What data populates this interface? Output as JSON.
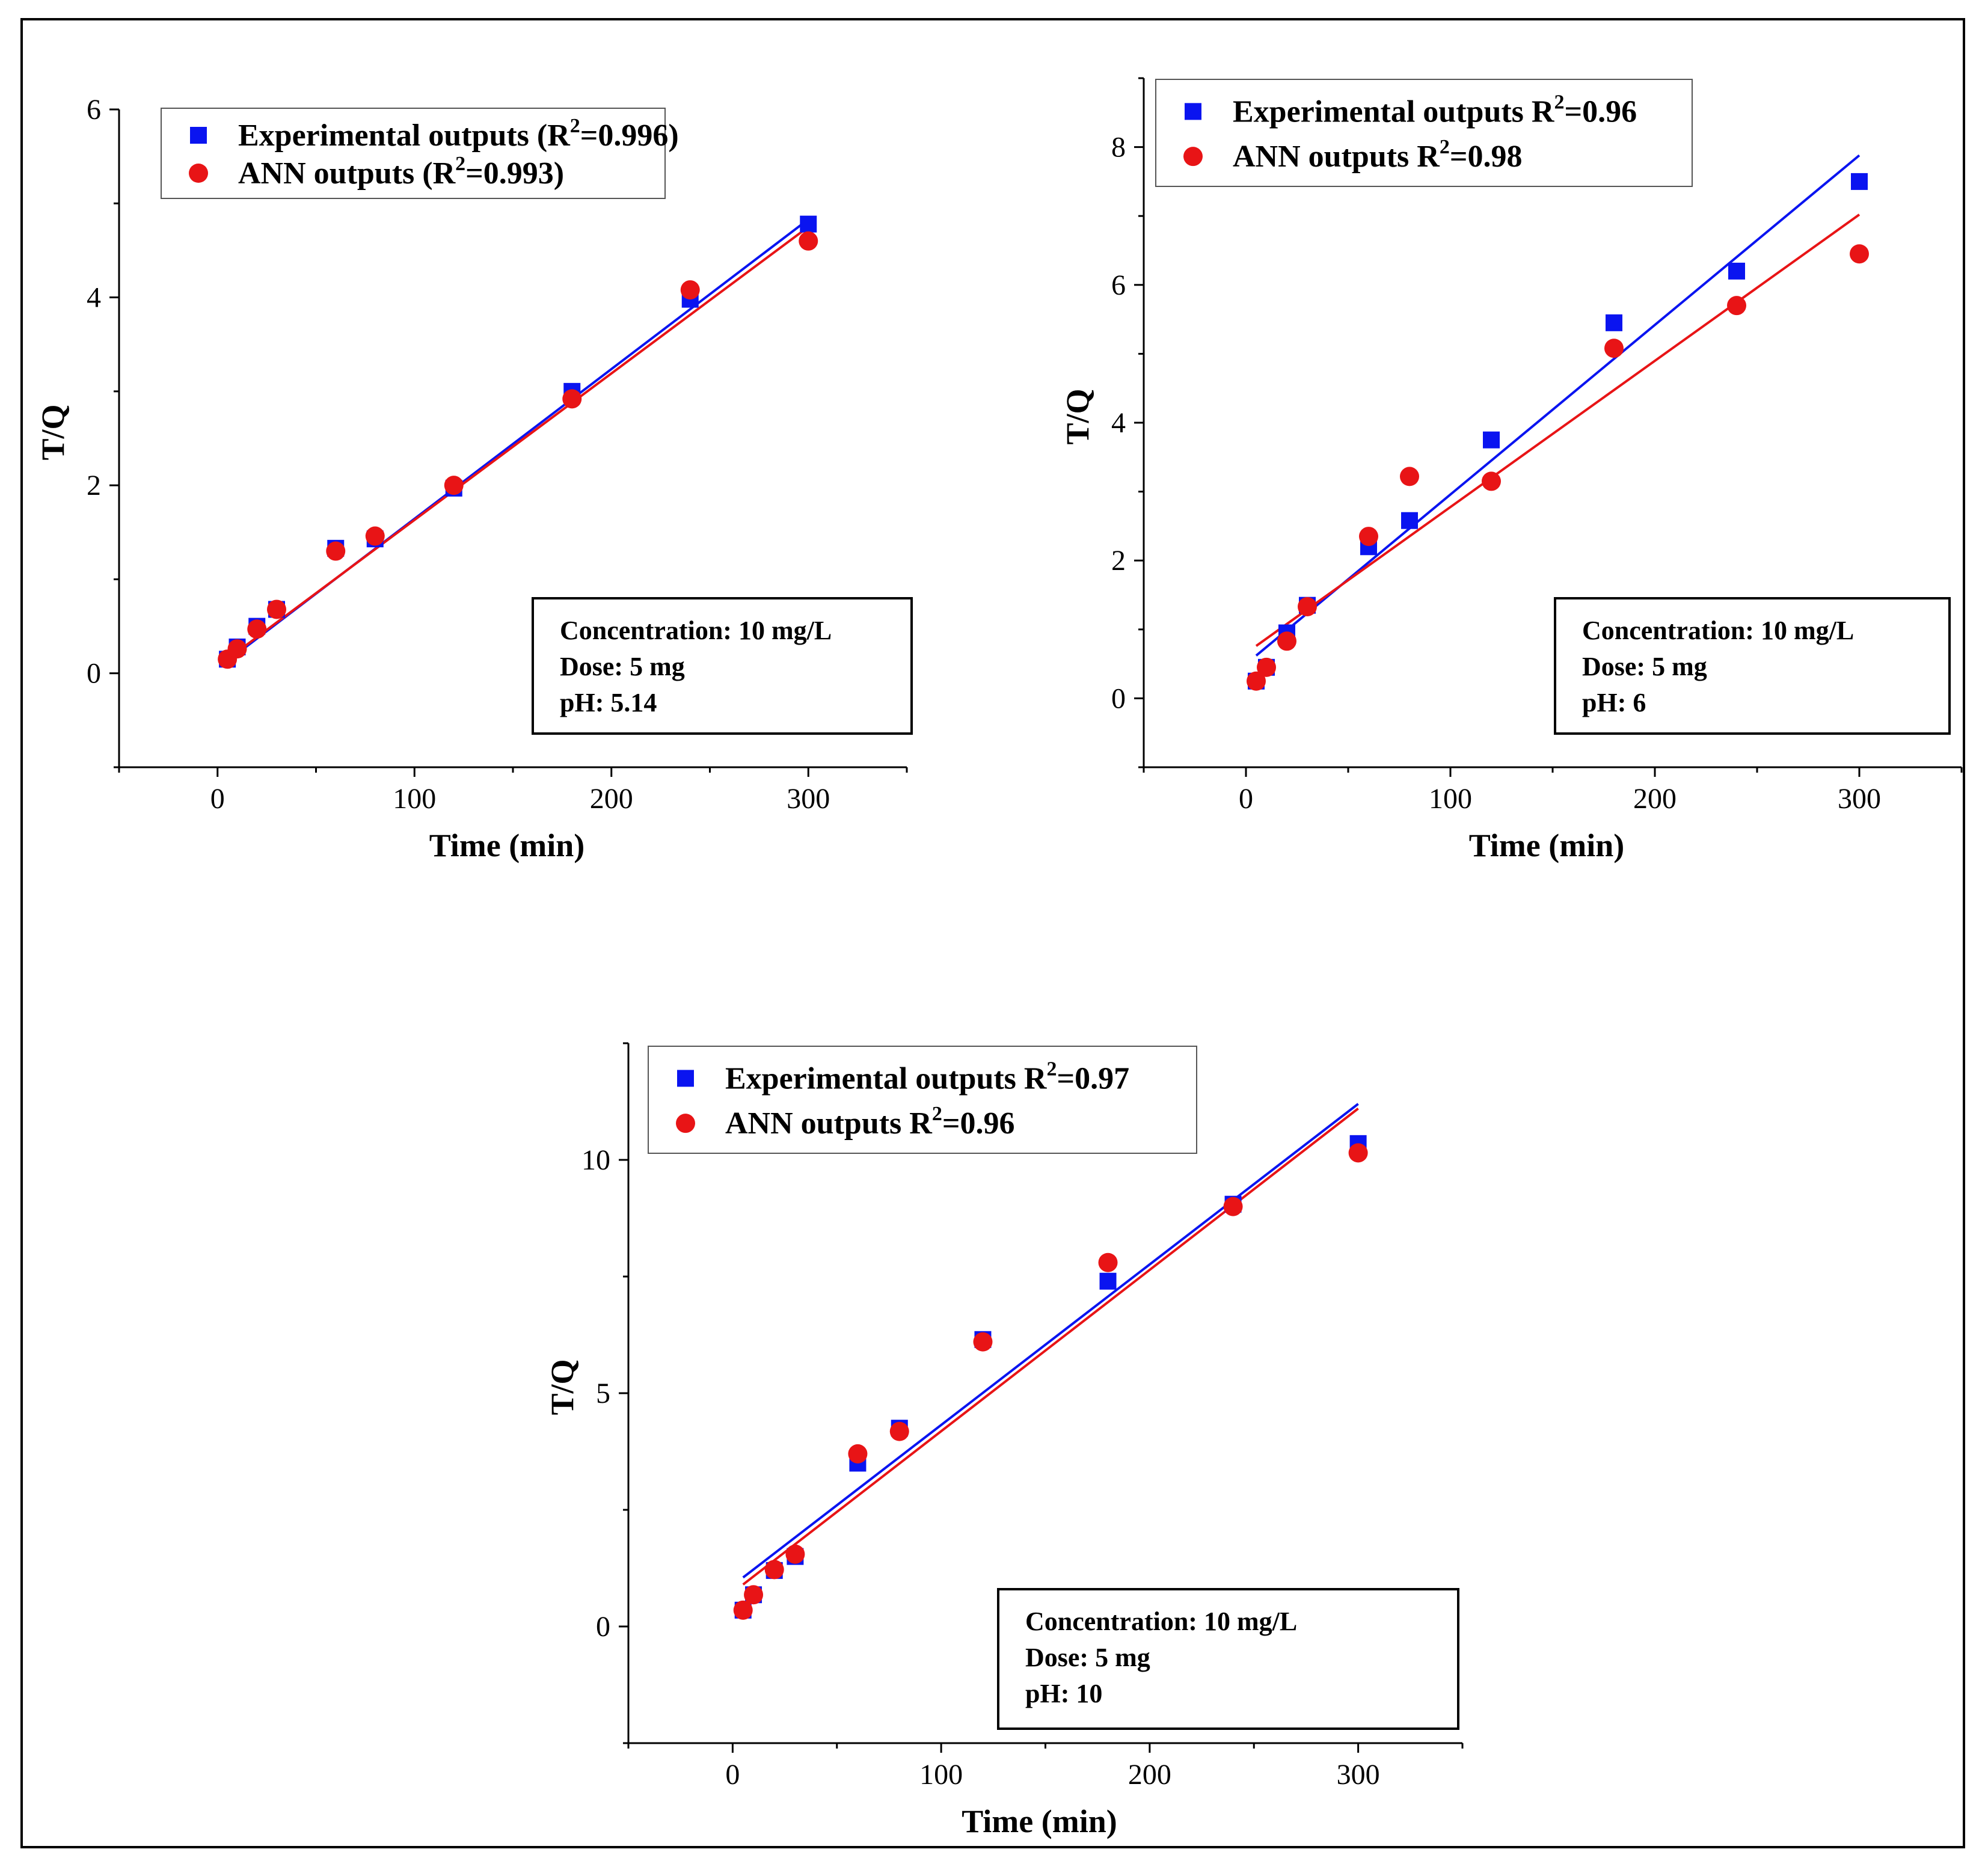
{
  "colors": {
    "experimental": "#0a14f0",
    "ann": "#e81416",
    "axis": "#000000"
  },
  "chart_data": [
    {
      "type": "scatter",
      "panel": "top-left",
      "xlabel": "Time (min)",
      "ylabel": "T/Q",
      "xlim": [
        -50,
        350
      ],
      "ylim": [
        -1,
        6
      ],
      "xticks": [
        "0",
        "100",
        "200",
        "300"
      ],
      "yticks": [
        "0",
        "2",
        "4",
        "6"
      ],
      "xtick_values": [
        0,
        100,
        200,
        300
      ],
      "ytick_values": [
        0,
        2,
        4,
        6
      ],
      "legend": {
        "position": "top-left",
        "items": [
          {
            "pre": "Experimental outputs (R",
            "sup": "2",
            "post": "=0.996)"
          },
          {
            "pre": "ANN outputs (R",
            "sup": "2",
            "post": "=0.993)"
          }
        ]
      },
      "info": [
        "Concentration: 10 mg/L",
        "Dose: 5 mg",
        "pH: 5.14"
      ],
      "series": [
        {
          "name": "Experimental outputs",
          "marker": "square",
          "x": [
            5,
            10,
            20,
            30,
            60,
            80,
            120,
            180,
            240,
            300
          ],
          "y": [
            0.15,
            0.28,
            0.5,
            0.68,
            1.33,
            1.43,
            1.97,
            3.0,
            3.98,
            4.78
          ],
          "fit": [
            [
              5,
              0.13
            ],
            [
              300,
              4.83
            ]
          ]
        },
        {
          "name": "ANN outputs",
          "marker": "circle",
          "x": [
            5,
            10,
            20,
            30,
            60,
            80,
            120,
            180,
            240,
            300
          ],
          "y": [
            0.15,
            0.26,
            0.47,
            0.68,
            1.3,
            1.46,
            2.0,
            2.92,
            4.08,
            4.6
          ],
          "fit": [
            [
              5,
              0.15
            ],
            [
              300,
              4.75
            ]
          ]
        }
      ]
    },
    {
      "type": "scatter",
      "panel": "top-right",
      "xlabel": "Time (min)",
      "ylabel": "T/Q",
      "xlim": [
        -50,
        350
      ],
      "ylim": [
        -1,
        9
      ],
      "xticks": [
        "0",
        "100",
        "200",
        "300"
      ],
      "yticks": [
        "0",
        "2",
        "4",
        "6",
        "8"
      ],
      "xtick_values": [
        0,
        100,
        200,
        300
      ],
      "ytick_values": [
        0,
        2,
        4,
        6,
        8
      ],
      "legend": {
        "position": "top-left",
        "items": [
          {
            "pre": "Experimental outputs R",
            "sup": "2",
            "post": "=0.96"
          },
          {
            "pre": "ANN outputs R",
            "sup": "2",
            "post": "=0.98"
          }
        ]
      },
      "info": [
        "Concentration: 10 mg/L",
        "Dose: 5 mg",
        "pH: 6"
      ],
      "series": [
        {
          "name": "Experimental outputs",
          "marker": "square",
          "x": [
            5,
            10,
            20,
            30,
            60,
            80,
            120,
            180,
            240,
            300
          ],
          "y": [
            0.25,
            0.45,
            0.95,
            1.35,
            2.2,
            2.58,
            3.75,
            5.45,
            6.2,
            7.5
          ],
          "fit": [
            [
              5,
              0.62
            ],
            [
              300,
              7.88
            ]
          ]
        },
        {
          "name": "ANN outputs",
          "marker": "circle",
          "x": [
            5,
            10,
            20,
            30,
            60,
            80,
            120,
            180,
            240,
            300
          ],
          "y": [
            0.25,
            0.45,
            0.83,
            1.33,
            2.35,
            3.22,
            3.15,
            5.08,
            5.7,
            6.45
          ],
          "fit": [
            [
              5,
              0.76
            ],
            [
              300,
              7.02
            ]
          ]
        }
      ]
    },
    {
      "type": "scatter",
      "panel": "bottom",
      "xlabel": "Time (min)",
      "ylabel": "T/Q",
      "xlim": [
        -50,
        350
      ],
      "ylim": [
        -2.5,
        12.5
      ],
      "xticks": [
        "0",
        "100",
        "200",
        "300"
      ],
      "yticks": [
        "0",
        "5",
        "10"
      ],
      "xtick_values": [
        0,
        100,
        200,
        300
      ],
      "ytick_values": [
        0,
        5,
        10
      ],
      "legend": {
        "position": "top-left",
        "items": [
          {
            "pre": "Experimental outputs R",
            "sup": "2",
            "post": "=0.97"
          },
          {
            "pre": "ANN outputs R",
            "sup": "2",
            "post": "=0.96"
          }
        ]
      },
      "info": [
        "Concentration: 10 mg/L",
        "Dose: 5 mg",
        "pH: 10"
      ],
      "series": [
        {
          "name": "Experimental outputs",
          "marker": "square",
          "x": [
            5,
            10,
            20,
            30,
            60,
            80,
            120,
            180,
            240,
            300
          ],
          "y": [
            0.35,
            0.68,
            1.2,
            1.5,
            3.5,
            4.25,
            6.15,
            7.4,
            9.05,
            10.35
          ],
          "fit": [
            [
              5,
              1.05
            ],
            [
              300,
              11.2
            ]
          ]
        },
        {
          "name": "ANN outputs",
          "marker": "circle",
          "x": [
            5,
            10,
            20,
            30,
            60,
            80,
            120,
            180,
            240,
            300
          ],
          "y": [
            0.35,
            0.68,
            1.22,
            1.55,
            3.7,
            4.18,
            6.1,
            7.8,
            9.0,
            10.15
          ],
          "fit": [
            [
              5,
              0.9
            ],
            [
              300,
              11.1
            ]
          ]
        }
      ]
    }
  ]
}
